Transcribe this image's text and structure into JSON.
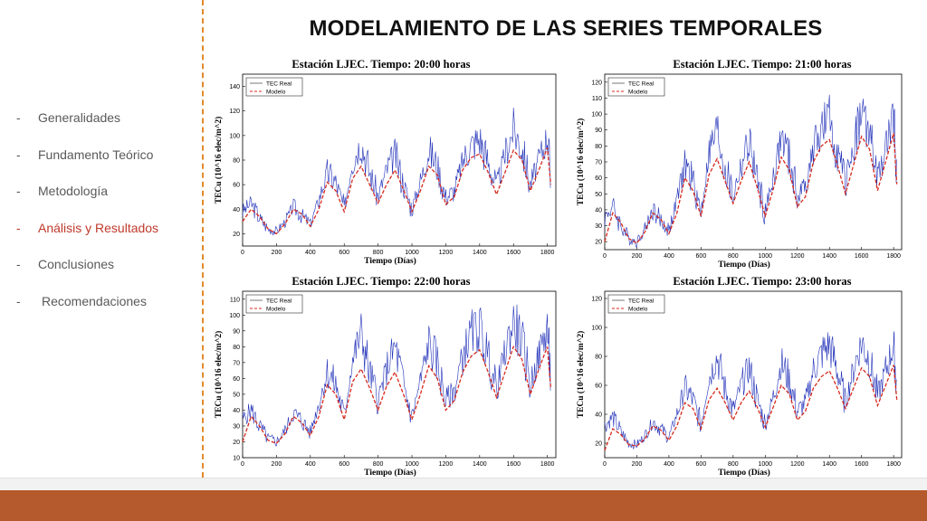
{
  "title": "MODELAMIENTO DE LAS SERIES TEMPORALES",
  "sidebar": {
    "items": [
      {
        "dash": "-",
        "label": "Generalidades",
        "active": false
      },
      {
        "dash": "-",
        "label": "Fundamento Teórico",
        "active": false
      },
      {
        "dash": "-",
        "label": "Metodología",
        "active": false
      },
      {
        "dash": "-",
        "label": "Análisis y Resultados",
        "active": true
      },
      {
        "dash": "-",
        "label": "Conclusiones",
        "active": false
      },
      {
        "dash": "-",
        "label": "Recomendaciones",
        "active": false
      }
    ]
  },
  "colors": {
    "tec_real": "#1f2fb8",
    "modelo": "#d62a1e",
    "active_nav": "#c0392b",
    "divider": "#e08a2b",
    "bottom_band": "#b55a2c"
  },
  "chart_data": [
    {
      "type": "line",
      "title": "Estación LJEC. Tiempo: 20:00 horas",
      "xlabel": "Tiempo (Días)",
      "ylabel": "TECu (10^16 elec/m^2)",
      "xlim": [
        0,
        1850
      ],
      "ylim": [
        10,
        150
      ],
      "xticks": [
        0,
        200,
        400,
        600,
        800,
        1000,
        1200,
        1400,
        1600,
        1800
      ],
      "yticks": [
        20,
        40,
        60,
        80,
        100,
        120,
        140
      ],
      "legend": "top-left",
      "series": [
        {
          "name": "TEC Real",
          "style": "solid",
          "x": [
            0,
            50,
            100,
            150,
            200,
            250,
            300,
            350,
            400,
            450,
            500,
            550,
            600,
            650,
            700,
            750,
            800,
            850,
            900,
            950,
            1000,
            1050,
            1100,
            1150,
            1200,
            1250,
            1300,
            1350,
            1400,
            1450,
            1500,
            1550,
            1600,
            1650,
            1700,
            1750,
            1800,
            1820
          ],
          "values": [
            38,
            45,
            33,
            24,
            22,
            30,
            42,
            35,
            28,
            48,
            70,
            62,
            40,
            80,
            95,
            70,
            50,
            72,
            85,
            60,
            40,
            62,
            88,
            75,
            50,
            55,
            80,
            92,
            98,
            78,
            58,
            85,
            105,
            90,
            60,
            80,
            100,
            65
          ]
        },
        {
          "name": "Modelo",
          "style": "dashed",
          "x": [
            0,
            50,
            100,
            150,
            200,
            250,
            300,
            350,
            400,
            450,
            500,
            550,
            600,
            650,
            700,
            750,
            800,
            850,
            900,
            950,
            1000,
            1050,
            1100,
            1150,
            1200,
            1250,
            1300,
            1350,
            1400,
            1450,
            1500,
            1550,
            1600,
            1650,
            1700,
            1750,
            1800,
            1820
          ],
          "values": [
            30,
            40,
            34,
            24,
            20,
            28,
            40,
            36,
            26,
            40,
            62,
            55,
            38,
            65,
            75,
            60,
            45,
            60,
            72,
            56,
            38,
            55,
            75,
            68,
            44,
            50,
            72,
            82,
            85,
            70,
            52,
            70,
            88,
            80,
            55,
            72,
            90,
            60
          ]
        }
      ]
    },
    {
      "type": "line",
      "title": "Estación LJEC. Tiempo: 21:00 horas",
      "xlabel": "Tiempo (Días)",
      "ylabel": "TECu (10^16 elec/m^2)",
      "xlim": [
        0,
        1850
      ],
      "ylim": [
        15,
        125
      ],
      "xticks": [
        0,
        200,
        400,
        600,
        800,
        1000,
        1200,
        1400,
        1600,
        1800
      ],
      "yticks": [
        20,
        30,
        40,
        50,
        60,
        70,
        80,
        90,
        100,
        110,
        120
      ],
      "legend": "top-left",
      "series": [
        {
          "name": "TEC Real",
          "style": "solid",
          "x": [
            0,
            50,
            100,
            150,
            200,
            250,
            300,
            350,
            400,
            450,
            500,
            550,
            600,
            650,
            700,
            750,
            800,
            850,
            900,
            950,
            1000,
            1050,
            1100,
            1150,
            1200,
            1250,
            1300,
            1350,
            1400,
            1450,
            1500,
            1550,
            1600,
            1650,
            1700,
            1750,
            1800,
            1820
          ],
          "values": [
            35,
            42,
            30,
            22,
            20,
            28,
            40,
            33,
            27,
            46,
            68,
            58,
            38,
            75,
            90,
            66,
            48,
            68,
            82,
            58,
            38,
            60,
            85,
            72,
            48,
            55,
            78,
            90,
            96,
            76,
            55,
            82,
            100,
            88,
            58,
            78,
            98,
            62
          ]
        },
        {
          "name": "Modelo",
          "style": "dashed",
          "x": [
            0,
            50,
            100,
            150,
            200,
            250,
            300,
            350,
            400,
            450,
            500,
            550,
            600,
            650,
            700,
            750,
            800,
            850,
            900,
            950,
            1000,
            1050,
            1100,
            1150,
            1200,
            1250,
            1300,
            1350,
            1400,
            1450,
            1500,
            1550,
            1600,
            1650,
            1700,
            1750,
            1800,
            1820
          ],
          "values": [
            20,
            38,
            32,
            22,
            19,
            26,
            38,
            34,
            25,
            38,
            60,
            52,
            36,
            62,
            72,
            58,
            44,
            58,
            70,
            54,
            36,
            53,
            73,
            65,
            42,
            48,
            70,
            80,
            84,
            68,
            50,
            68,
            86,
            78,
            52,
            70,
            88,
            56
          ]
        }
      ]
    },
    {
      "type": "line",
      "title": "Estación LJEC. Tiempo: 22:00 horas",
      "xlabel": "Tiempo (Días)",
      "ylabel": "TECu (10^16 elec/m^2)",
      "xlim": [
        0,
        1850
      ],
      "ylim": [
        10,
        115
      ],
      "xticks": [
        0,
        200,
        400,
        600,
        800,
        1000,
        1200,
        1400,
        1600,
        1800
      ],
      "yticks": [
        10,
        20,
        30,
        40,
        50,
        60,
        70,
        80,
        90,
        100,
        110
      ],
      "legend": "top-left",
      "series": [
        {
          "name": "TEC Real",
          "style": "solid",
          "x": [
            0,
            50,
            100,
            150,
            200,
            250,
            300,
            350,
            400,
            450,
            500,
            550,
            600,
            650,
            700,
            750,
            800,
            850,
            900,
            950,
            1000,
            1050,
            1100,
            1150,
            1200,
            1250,
            1300,
            1350,
            1400,
            1450,
            1500,
            1550,
            1600,
            1650,
            1700,
            1750,
            1800,
            1820
          ],
          "values": [
            34,
            40,
            30,
            22,
            20,
            27,
            38,
            33,
            26,
            44,
            64,
            56,
            36,
            72,
            88,
            64,
            46,
            66,
            80,
            56,
            36,
            58,
            82,
            70,
            46,
            52,
            75,
            88,
            92,
            74,
            52,
            78,
            95,
            84,
            56,
            74,
            92,
            60
          ]
        },
        {
          "name": "Modelo",
          "style": "dashed",
          "x": [
            0,
            50,
            100,
            150,
            200,
            250,
            300,
            350,
            400,
            450,
            500,
            550,
            600,
            650,
            700,
            750,
            800,
            850,
            900,
            950,
            1000,
            1050,
            1100,
            1150,
            1200,
            1250,
            1300,
            1350,
            1400,
            1450,
            1500,
            1550,
            1600,
            1650,
            1700,
            1750,
            1800,
            1820
          ],
          "values": [
            20,
            36,
            30,
            21,
            19,
            25,
            36,
            32,
            24,
            36,
            56,
            50,
            34,
            58,
            66,
            54,
            40,
            55,
            64,
            50,
            34,
            50,
            68,
            60,
            40,
            46,
            64,
            74,
            78,
            64,
            48,
            64,
            80,
            72,
            50,
            66,
            80,
            54
          ]
        }
      ]
    },
    {
      "type": "line",
      "title": "Estación LJEC. Tiempo: 23:00 horas",
      "xlabel": "Tiempo (Días)",
      "ylabel": "TECu (10^16 elec/m^2)",
      "xlim": [
        0,
        1850
      ],
      "ylim": [
        10,
        125
      ],
      "xticks": [
        0,
        200,
        400,
        600,
        800,
        1000,
        1200,
        1400,
        1600,
        1800
      ],
      "yticks": [
        20,
        40,
        60,
        80,
        100,
        120
      ],
      "legend": "top-left",
      "series": [
        {
          "name": "TEC Real",
          "style": "solid",
          "x": [
            0,
            50,
            100,
            150,
            200,
            250,
            300,
            350,
            400,
            450,
            500,
            550,
            600,
            650,
            700,
            750,
            800,
            850,
            900,
            950,
            1000,
            1050,
            1100,
            1150,
            1200,
            1250,
            1300,
            1350,
            1400,
            1450,
            1500,
            1550,
            1600,
            1650,
            1700,
            1750,
            1800,
            1820
          ],
          "values": [
            32,
            38,
            28,
            20,
            19,
            25,
            35,
            30,
            24,
            40,
            58,
            50,
            33,
            65,
            80,
            58,
            42,
            60,
            72,
            50,
            33,
            52,
            75,
            64,
            42,
            48,
            70,
            82,
            88,
            70,
            48,
            72,
            90,
            78,
            52,
            70,
            88,
            56
          ]
        },
        {
          "name": "Modelo",
          "style": "dashed",
          "x": [
            0,
            50,
            100,
            150,
            200,
            250,
            300,
            350,
            400,
            450,
            500,
            550,
            600,
            650,
            700,
            750,
            800,
            850,
            900,
            950,
            1000,
            1050,
            1100,
            1150,
            1200,
            1250,
            1300,
            1350,
            1400,
            1450,
            1500,
            1550,
            1600,
            1650,
            1700,
            1750,
            1800,
            1820
          ],
          "values": [
            15,
            30,
            26,
            19,
            18,
            23,
            32,
            29,
            22,
            32,
            48,
            44,
            30,
            50,
            58,
            48,
            36,
            48,
            56,
            45,
            31,
            45,
            60,
            54,
            36,
            42,
            58,
            66,
            70,
            58,
            44,
            58,
            72,
            66,
            46,
            60,
            74,
            50
          ]
        }
      ]
    }
  ]
}
